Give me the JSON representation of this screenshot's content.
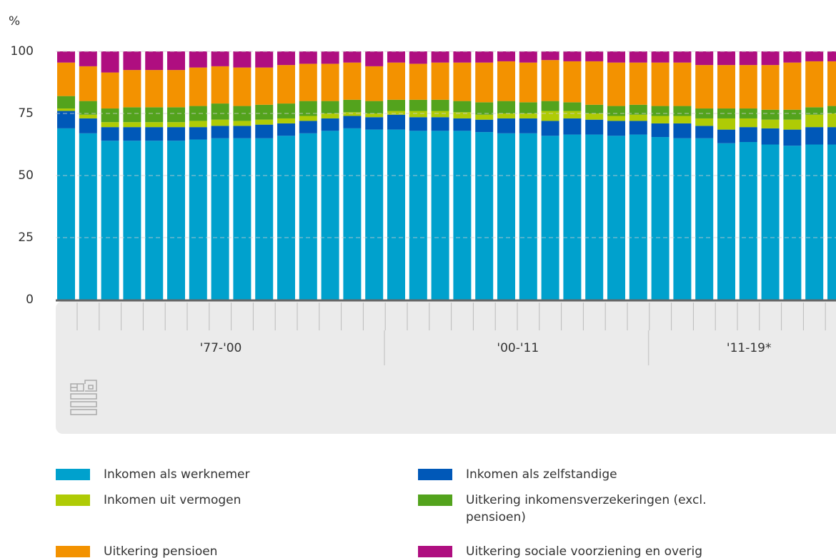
{
  "chart_data": {
    "type": "stacked_bar",
    "y_axis_label": "%",
    "categories": [
      null,
      null,
      null,
      null,
      null,
      null,
      null,
      null,
      null,
      null,
      null,
      null,
      null,
      null,
      null,
      null,
      null,
      null,
      null,
      null,
      null,
      null,
      null,
      null,
      null,
      null,
      null,
      null,
      null,
      null,
      null,
      null,
      null,
      null,
      null,
      null
    ],
    "groups": [
      {
        "label": "'77-'00",
        "size": 15
      },
      {
        "label": "'00-'11",
        "size": 12
      },
      {
        "label": "'11-19*",
        "size": 9
      }
    ],
    "ylim": [
      0,
      100
    ],
    "yticks": [
      0,
      25,
      50,
      75,
      100
    ],
    "grid": true,
    "series": [
      {
        "name": "Inkomen als werknemer",
        "color": "#00a1cd",
        "values": [
          69,
          67,
          64,
          64,
          64,
          64,
          64.5,
          65,
          65,
          65,
          66,
          67,
          68,
          69,
          68.5,
          68.5,
          68,
          68,
          68,
          67.5,
          67,
          67,
          66,
          66.5,
          66.5,
          66,
          66.5,
          65.5,
          65,
          65,
          63,
          63.5,
          62.5,
          62,
          62.5,
          62.5
        ]
      },
      {
        "name": "Inkomen als zelfstandige",
        "color": "#0058b8",
        "values": [
          7,
          6,
          5.5,
          5.5,
          5.5,
          5.5,
          5,
          5,
          5,
          5.5,
          5,
          5,
          5,
          5,
          5,
          6,
          5.5,
          5.5,
          5,
          5,
          6,
          6,
          6,
          6.5,
          6,
          6,
          5.5,
          5.5,
          6,
          5,
          5.5,
          6,
          6.5,
          6.5,
          7,
          7
        ]
      },
      {
        "name": "Inkomen uit vermogen",
        "color": "#afcb05",
        "values": [
          1,
          1.5,
          2,
          2,
          2,
          2,
          2.5,
          2.5,
          2,
          2,
          2,
          2,
          2,
          1.5,
          1.5,
          1.5,
          2.5,
          2.5,
          2.5,
          2,
          2,
          2,
          4,
          3,
          2.5,
          2,
          2.5,
          3,
          3,
          3,
          4.5,
          3.5,
          3.5,
          4,
          5,
          5.5
        ]
      },
      {
        "name": "Uitkering inkomensverzekeringen (excl. pensioen)",
        "color": "#53a31d",
        "values": [
          5,
          5.5,
          5.5,
          6,
          6,
          6,
          6,
          6.5,
          6,
          6,
          6,
          6,
          5,
          5,
          5,
          4.5,
          4.5,
          4.5,
          4.5,
          5,
          5,
          4.5,
          4,
          3.5,
          3.5,
          4,
          4,
          4,
          4,
          4,
          4,
          4,
          4,
          4,
          3,
          3
        ]
      },
      {
        "name": "Uitkering pensioen",
        "color": "#f39200",
        "values": [
          13.5,
          14,
          14.5,
          15,
          15,
          15,
          15.5,
          15,
          15.5,
          15,
          15.5,
          15,
          15,
          15,
          14,
          15,
          14.5,
          15,
          15.5,
          16,
          16,
          16,
          16.5,
          16.5,
          17.5,
          17.5,
          17,
          17.5,
          17.5,
          17.5,
          17.5,
          17.5,
          18,
          19,
          18.5,
          18
        ]
      },
      {
        "name": "Uitkering sociale voorziening en overig",
        "color": "#af0e80",
        "values": [
          4.5,
          6,
          8.5,
          7.5,
          7.5,
          7.5,
          6.5,
          6,
          6.5,
          6.5,
          5.5,
          5,
          5,
          4.5,
          6,
          4.5,
          5,
          4.5,
          4.5,
          4.5,
          4,
          4.5,
          3.5,
          4,
          4,
          4.5,
          4.5,
          4.5,
          4.5,
          5.5,
          5.5,
          5.5,
          5.5,
          4.5,
          4,
          4
        ]
      }
    ]
  }
}
